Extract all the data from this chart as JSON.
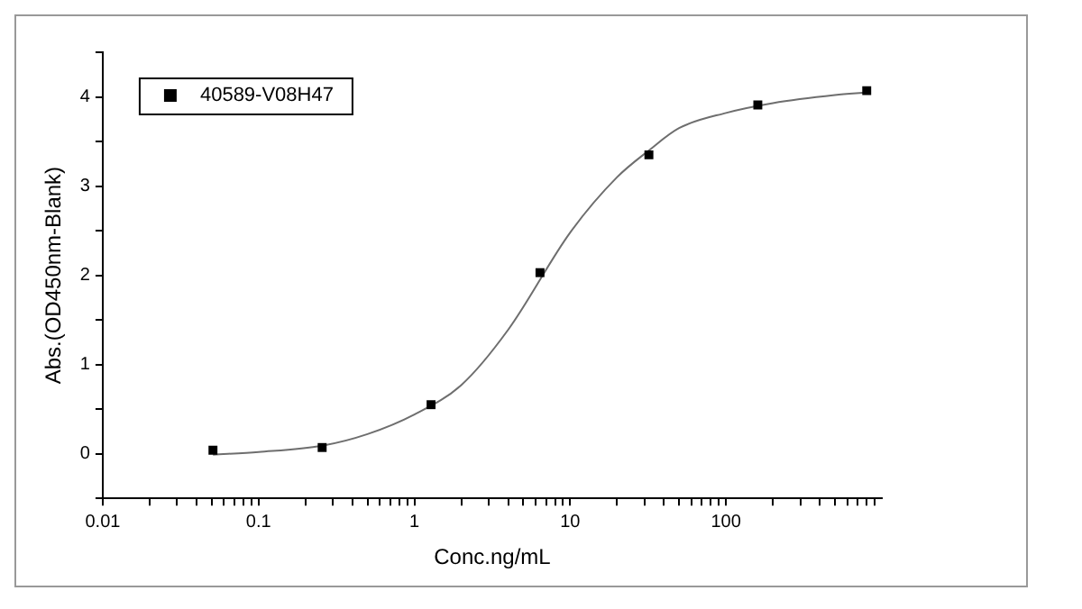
{
  "chart_data": {
    "type": "scatter",
    "xlabel": "Conc.ng/mL",
    "ylabel": "Abs.(OD450nm-Blank)",
    "log": "x",
    "marker": "square",
    "legend": "top left",
    "grid": false,
    "xlim": [
      0.01,
      1000
    ],
    "ylim": [
      -0.5,
      4.5
    ],
    "xticks": [
      0.01,
      {
        "value": 0.02,
        "label": null
      },
      {
        "value": 0.03,
        "label": null
      },
      {
        "value": 0.04,
        "label": null
      },
      {
        "value": 0.05,
        "label": null
      },
      {
        "value": 0.06,
        "label": null
      },
      {
        "value": 0.07,
        "label": null
      },
      {
        "value": 0.08,
        "label": null
      },
      {
        "value": 0.09,
        "label": null
      },
      0.1,
      {
        "value": 0.2,
        "label": null
      },
      {
        "value": 0.3,
        "label": null
      },
      {
        "value": 0.4,
        "label": null
      },
      {
        "value": 0.5,
        "label": null
      },
      {
        "value": 0.6,
        "label": null
      },
      {
        "value": 0.7,
        "label": null
      },
      {
        "value": 0.8,
        "label": null
      },
      {
        "value": 0.9,
        "label": null
      },
      1,
      {
        "value": 2,
        "label": null
      },
      {
        "value": 3,
        "label": null
      },
      {
        "value": 4,
        "label": null
      },
      {
        "value": 5,
        "label": null
      },
      {
        "value": 6,
        "label": null
      },
      {
        "value": 7,
        "label": null
      },
      {
        "value": 8,
        "label": null
      },
      {
        "value": 9,
        "label": null
      },
      10,
      {
        "value": 20,
        "label": null
      },
      {
        "value": 30,
        "label": null
      },
      {
        "value": 40,
        "label": null
      },
      {
        "value": 50,
        "label": null
      },
      {
        "value": 60,
        "label": null
      },
      {
        "value": 70,
        "label": null
      },
      {
        "value": 80,
        "label": null
      },
      {
        "value": 90,
        "label": null
      },
      100,
      {
        "value": 200,
        "label": null
      },
      {
        "value": 300,
        "label": null
      },
      {
        "value": 400,
        "label": null
      },
      {
        "value": 500,
        "label": null
      },
      {
        "value": 600,
        "label": null
      },
      {
        "value": 700,
        "label": null
      },
      {
        "value": 800,
        "label": null
      },
      {
        "value": 900,
        "label": null
      }
    ],
    "yticks": [
      {
        "value": -0.5,
        "label": null
      },
      0,
      {
        "value": 0.5,
        "label": null
      },
      1,
      {
        "value": 1.5,
        "label": null
      },
      2,
      {
        "value": 2.5,
        "label": null
      },
      3,
      {
        "value": 3.5,
        "label": null
      },
      4,
      {
        "value": 4.5,
        "label": null
      }
    ],
    "series": [
      {
        "name": "40589-V08H47",
        "color": "#000000",
        "x": [
          0.051,
          0.256,
          1.28,
          6.4,
          32,
          160,
          800
        ],
        "values": [
          0.04,
          0.07,
          0.55,
          2.03,
          3.35,
          3.91,
          4.07
        ]
      },
      {
        "type": "line",
        "marker": "none",
        "color": "#6e6e6e",
        "x": [
          0.051,
          0.1,
          0.256,
          0.5,
          1,
          2,
          4,
          10,
          20,
          32,
          50,
          100,
          200,
          500,
          800
        ],
        "values": [
          -0.01,
          0.02,
          0.09,
          0.22,
          0.44,
          0.77,
          1.39,
          2.48,
          3.1,
          3.4,
          3.65,
          3.82,
          3.93,
          4.02,
          4.05
        ]
      }
    ]
  }
}
